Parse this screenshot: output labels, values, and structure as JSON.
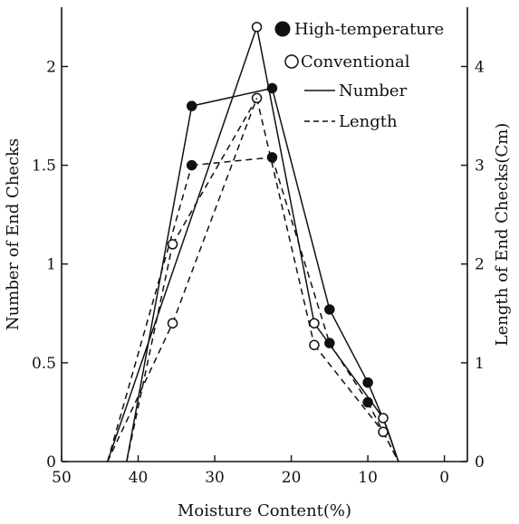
{
  "chart_data": {
    "type": "line",
    "x_axis": {
      "label": "Moisture Content(%)",
      "range": [
        50,
        -3
      ],
      "ticks": [
        50,
        40,
        30,
        20,
        10,
        0
      ],
      "tick_labels": [
        "50",
        "40",
        "30",
        "20",
        "10",
        "0"
      ],
      "reversed": true
    },
    "y_left": {
      "label": "Number of End Checks",
      "range": [
        0,
        2.3
      ],
      "ticks": [
        0,
        0.5,
        1,
        1.5,
        2
      ],
      "tick_labels": [
        "0",
        "0.5",
        "1",
        "1.5",
        "2"
      ]
    },
    "y_right": {
      "label": "Length of End Checks(Cm)",
      "range": [
        0,
        4.6
      ],
      "ticks": [
        0,
        1,
        2,
        3,
        4
      ],
      "tick_labels": [
        "0",
        "1",
        "2",
        "3",
        "4"
      ]
    },
    "legend": {
      "position": "top-right",
      "entries": [
        {
          "marker": "filled-circle",
          "text": "High-temperature"
        },
        {
          "marker": "open-circle",
          "text": "Conventional"
        },
        {
          "line": "solid",
          "text": "Number"
        },
        {
          "line": "dashed",
          "text": "Length"
        }
      ]
    },
    "series": [
      {
        "name": "High-temperature Number",
        "axis": "left",
        "dash": "solid",
        "marker": "filled",
        "points": [
          [
            41.5,
            0
          ],
          [
            33,
            1.8
          ],
          [
            22.5,
            1.89
          ],
          [
            15,
            0.77
          ],
          [
            10,
            0.4
          ],
          [
            7.5,
            0.17
          ],
          [
            6,
            0
          ]
        ],
        "marked": [
          false,
          true,
          true,
          true,
          true,
          false,
          false
        ]
      },
      {
        "name": "High-temperature Length",
        "axis": "right",
        "dash": "dashed",
        "marker": "filled",
        "points": [
          [
            44,
            0
          ],
          [
            33,
            3.0
          ],
          [
            22.5,
            3.08
          ],
          [
            15,
            1.2
          ],
          [
            10,
            0.6
          ],
          [
            6,
            0
          ]
        ],
        "marked": [
          false,
          true,
          true,
          true,
          true,
          false
        ]
      },
      {
        "name": "Conventional Number",
        "axis": "left",
        "dash": "solid",
        "marker": "open",
        "points": [
          [
            44,
            0
          ],
          [
            24.5,
            2.2
          ],
          [
            17,
            0.7
          ],
          [
            8,
            0.22
          ],
          [
            6,
            0
          ]
        ],
        "marked": [
          false,
          true,
          true,
          true,
          false
        ]
      },
      {
        "name": "Conventional Length",
        "axis": "right",
        "dash": "dashed",
        "marker": "open",
        "points": [
          [
            41.5,
            0
          ],
          [
            35.5,
            2.2
          ],
          [
            24.5,
            3.68
          ],
          [
            17,
            1.18
          ],
          [
            8,
            0.3
          ],
          [
            6,
            0
          ]
        ],
        "marked": [
          false,
          true,
          true,
          true,
          true,
          false
        ]
      },
      {
        "name": "Conventional Length (lower branch)",
        "axis": "right",
        "dash": "dashed",
        "marker": "open",
        "points": [
          [
            44,
            0
          ],
          [
            35.5,
            1.4
          ],
          [
            24.5,
            3.68
          ]
        ],
        "marked": [
          false,
          true,
          false
        ]
      }
    ]
  }
}
